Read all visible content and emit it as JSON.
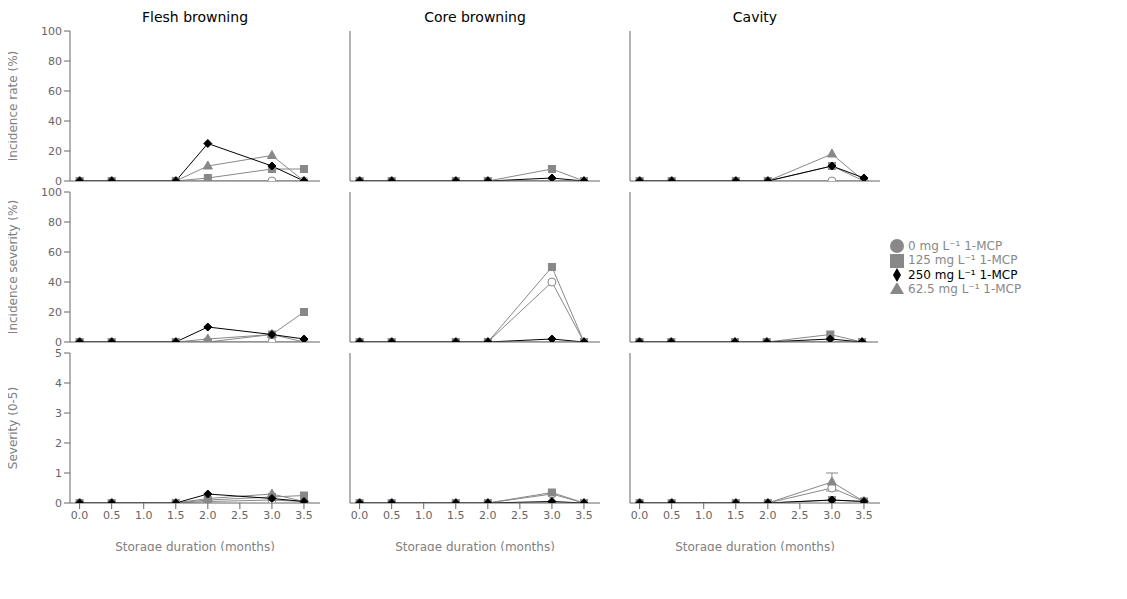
{
  "chart_data": [
    {
      "type": "line",
      "title": "Flesh browning",
      "ylabel": "Incidence rate (%)",
      "tick_labels": "y",
      "x": [
        0,
        0.5,
        1.5,
        2,
        3,
        3.5
      ],
      "xlim": [
        -0.15,
        3.75
      ],
      "xticks": [
        {
          "value": 0,
          "label": "0.0"
        },
        {
          "value": 0.5,
          "label": "0.5"
        },
        {
          "value": 1,
          "label": "1.0"
        },
        {
          "value": 1.5,
          "label": "1.5"
        },
        {
          "value": 2,
          "label": "2.0"
        },
        {
          "value": 2.5,
          "label": "2.5"
        },
        {
          "value": 3,
          "label": "3.0"
        },
        {
          "value": 3.5,
          "label": "3.5"
        }
      ],
      "ylim": [
        0,
        100
      ],
      "yticks": [
        0,
        20,
        40,
        60,
        80,
        100
      ],
      "series": [
        {
          "name": "0 mg L⁻¹ 1-MCP",
          "color": "#888888",
          "marker": "circle_open",
          "values": [
            0,
            0,
            0,
            0,
            0,
            0
          ]
        },
        {
          "name": "62.5 mg L⁻¹ 1-MCP",
          "color": "#888888",
          "marker": "triangle",
          "values": [
            0,
            0,
            0,
            10,
            17,
            0
          ]
        },
        {
          "name": "125 mg L⁻¹ 1-MCP",
          "color": "#888888",
          "marker": "square",
          "values": [
            0,
            0,
            0,
            2,
            8,
            8
          ]
        },
        {
          "name": "250 mg L⁻¹ 1-MCP",
          "color": "#000000",
          "marker": "diamond",
          "values": [
            0,
            0,
            0,
            25,
            10,
            0
          ]
        }
      ]
    },
    {
      "type": "line",
      "title": "Core browning",
      "tick_labels": false,
      "x": [
        0,
        0.5,
        1.5,
        2,
        3,
        3.5
      ],
      "xlim": [
        -0.15,
        3.75
      ],
      "xticks": [
        {
          "value": 0,
          "label": "0.0"
        },
        {
          "value": 0.5,
          "label": "0.5"
        },
        {
          "value": 1,
          "label": "1.0"
        },
        {
          "value": 1.5,
          "label": "1.5"
        },
        {
          "value": 2,
          "label": "2.0"
        },
        {
          "value": 2.5,
          "label": "2.5"
        },
        {
          "value": 3,
          "label": "3.0"
        },
        {
          "value": 3.5,
          "label": "3.5"
        }
      ],
      "ylim": [
        0,
        100
      ],
      "yticks": [
        0,
        20,
        40,
        60,
        80,
        100
      ],
      "series": [
        {
          "name": "0 mg L⁻¹ 1-MCP",
          "color": "#888888",
          "marker": "circle_open",
          "values": [
            0,
            0,
            0,
            0,
            0,
            0
          ]
        },
        {
          "name": "62.5 mg L⁻¹ 1-MCP",
          "color": "#888888",
          "marker": "triangle",
          "values": [
            0,
            0,
            0,
            0,
            0,
            0
          ]
        },
        {
          "name": "125 mg L⁻¹ 1-MCP",
          "color": "#888888",
          "marker": "square",
          "values": [
            0,
            0,
            0,
            0,
            8,
            0
          ]
        },
        {
          "name": "250 mg L⁻¹ 1-MCP",
          "color": "#000000",
          "marker": "diamond",
          "values": [
            0,
            0,
            0,
            0,
            2,
            0
          ]
        }
      ]
    },
    {
      "type": "line",
      "title": "Cavity",
      "tick_labels": false,
      "x": [
        0,
        0.5,
        1.5,
        2,
        3,
        3.5
      ],
      "xlim": [
        -0.15,
        3.75
      ],
      "xticks": [
        {
          "value": 0,
          "label": "0.0"
        },
        {
          "value": 0.5,
          "label": "0.5"
        },
        {
          "value": 1,
          "label": "1.0"
        },
        {
          "value": 1.5,
          "label": "1.5"
        },
        {
          "value": 2,
          "label": "2.0"
        },
        {
          "value": 2.5,
          "label": "2.5"
        },
        {
          "value": 3,
          "label": "3.0"
        },
        {
          "value": 3.5,
          "label": "3.5"
        }
      ],
      "ylim": [
        0,
        100
      ],
      "yticks": [
        0,
        20,
        40,
        60,
        80,
        100
      ],
      "series": [
        {
          "name": "0 mg L⁻¹ 1-MCP",
          "color": "#888888",
          "marker": "circle_open",
          "values": [
            0,
            0,
            0,
            0,
            0,
            0
          ]
        },
        {
          "name": "62.5 mg L⁻¹ 1-MCP",
          "color": "#888888",
          "marker": "triangle",
          "values": [
            0,
            0,
            0,
            0,
            18,
            0
          ]
        },
        {
          "name": "125 mg L⁻¹ 1-MCP",
          "color": "#888888",
          "marker": "square",
          "values": [
            0,
            0,
            0,
            0,
            10,
            0
          ]
        },
        {
          "name": "250 mg L⁻¹ 1-MCP",
          "color": "#000000",
          "marker": "diamond",
          "values": [
            0,
            0,
            0,
            0,
            10,
            2
          ]
        }
      ]
    },
    {
      "type": "line",
      "ylabel": "Incidence severity (%)",
      "tick_labels": "y",
      "x": [
        0,
        0.5,
        1.5,
        2,
        3,
        3.5
      ],
      "xlim": [
        -0.15,
        3.75
      ],
      "xticks": [
        {
          "value": 0,
          "label": "0.0"
        },
        {
          "value": 0.5,
          "label": "0.5"
        },
        {
          "value": 1,
          "label": "1.0"
        },
        {
          "value": 1.5,
          "label": "1.5"
        },
        {
          "value": 2,
          "label": "2.0"
        },
        {
          "value": 2.5,
          "label": "2.5"
        },
        {
          "value": 3,
          "label": "3.0"
        },
        {
          "value": 3.5,
          "label": "3.5"
        }
      ],
      "ylim": [
        0,
        100
      ],
      "yticks": [
        0,
        20,
        40,
        60,
        80,
        100
      ],
      "series": [
        {
          "name": "0 mg L⁻¹ 1-MCP",
          "color": "#888888",
          "marker": "circle_open",
          "values": [
            0,
            0,
            0,
            0,
            0,
            0
          ]
        },
        {
          "name": "62.5 mg L⁻¹ 1-MCP",
          "color": "#888888",
          "marker": "triangle",
          "values": [
            0,
            0,
            0,
            2,
            5,
            0
          ]
        },
        {
          "name": "125 mg L⁻¹ 1-MCP",
          "color": "#888888",
          "marker": "square",
          "values": [
            0,
            0,
            0,
            0,
            5,
            20
          ]
        },
        {
          "name": "250 mg L⁻¹ 1-MCP",
          "color": "#000000",
          "marker": "diamond",
          "values": [
            0,
            0,
            0,
            10,
            5,
            2
          ]
        }
      ]
    },
    {
      "type": "line",
      "tick_labels": false,
      "x": [
        0,
        0.5,
        1.5,
        2,
        3,
        3.5
      ],
      "xlim": [
        -0.15,
        3.75
      ],
      "xticks": [
        {
          "value": 0,
          "label": "0.0"
        },
        {
          "value": 0.5,
          "label": "0.5"
        },
        {
          "value": 1,
          "label": "1.0"
        },
        {
          "value": 1.5,
          "label": "1.5"
        },
        {
          "value": 2,
          "label": "2.0"
        },
        {
          "value": 2.5,
          "label": "2.5"
        },
        {
          "value": 3,
          "label": "3.0"
        },
        {
          "value": 3.5,
          "label": "3.5"
        }
      ],
      "ylim": [
        0,
        100
      ],
      "yticks": [
        0,
        20,
        40,
        60,
        80,
        100
      ],
      "series": [
        {
          "name": "0 mg L⁻¹ 1-MCP",
          "color": "#888888",
          "marker": "circle_open",
          "values": [
            0,
            0,
            0,
            0,
            40,
            0
          ]
        },
        {
          "name": "62.5 mg L⁻¹ 1-MCP",
          "color": "#888888",
          "marker": "triangle",
          "values": [
            0,
            0,
            0,
            0,
            0,
            0
          ]
        },
        {
          "name": "125 mg L⁻¹ 1-MCP",
          "color": "#888888",
          "marker": "square",
          "values": [
            0,
            0,
            0,
            0,
            50,
            0
          ]
        },
        {
          "name": "250 mg L⁻¹ 1-MCP",
          "color": "#000000",
          "marker": "diamond",
          "values": [
            0,
            0,
            0,
            0,
            2,
            0
          ]
        }
      ]
    },
    {
      "type": "line",
      "tick_labels": false,
      "legend": "right",
      "x": [
        0,
        0.5,
        1.5,
        2,
        3,
        3.5
      ],
      "xlim": [
        -0.15,
        3.75
      ],
      "xticks": [
        {
          "value": 0,
          "label": "0.0"
        },
        {
          "value": 0.5,
          "label": "0.5"
        },
        {
          "value": 1,
          "label": "1.0"
        },
        {
          "value": 1.5,
          "label": "1.5"
        },
        {
          "value": 2,
          "label": "2.0"
        },
        {
          "value": 2.5,
          "label": "2.5"
        },
        {
          "value": 3,
          "label": "3.0"
        },
        {
          "value": 3.5,
          "label": "3.5"
        }
      ],
      "ylim": [
        0,
        100
      ],
      "yticks": [
        0,
        20,
        40,
        60,
        80,
        100
      ],
      "series": [
        {
          "name": "0 mg L⁻¹ 1-MCP",
          "color": "#888888",
          "marker": "circle_open",
          "values": [
            0,
            0,
            0,
            0,
            0,
            0
          ]
        },
        {
          "name": "62.5 mg L⁻¹ 1-MCP",
          "color": "#888888",
          "marker": "triangle",
          "values": [
            0,
            0,
            0,
            0,
            0,
            0
          ]
        },
        {
          "name": "125 mg L⁻¹ 1-MCP",
          "color": "#888888",
          "marker": "square",
          "values": [
            0,
            0,
            0,
            0,
            5,
            0
          ]
        },
        {
          "name": "250 mg L⁻¹ 1-MCP",
          "color": "#000000",
          "marker": "diamond",
          "values": [
            0,
            0,
            0,
            0,
            2,
            0
          ]
        }
      ]
    },
    {
      "type": "line",
      "ylabel": "Severity (0-5)",
      "xlabel": "Storage duration (months)",
      "x": [
        0,
        0.5,
        1.5,
        2,
        3,
        3.5
      ],
      "xlim": [
        -0.15,
        3.75
      ],
      "xticks": [
        {
          "value": 0,
          "label": "0.0"
        },
        {
          "value": 0.5,
          "label": "0.5"
        },
        {
          "value": 1,
          "label": "1.0"
        },
        {
          "value": 1.5,
          "label": "1.5"
        },
        {
          "value": 2,
          "label": "2.0"
        },
        {
          "value": 2.5,
          "label": "2.5"
        },
        {
          "value": 3,
          "label": "3.0"
        },
        {
          "value": 3.5,
          "label": "3.5"
        }
      ],
      "ylim": [
        0,
        5
      ],
      "yticks": [
        0,
        1,
        2,
        3,
        4,
        5
      ],
      "series": [
        {
          "name": "0 mg L⁻¹ 1-MCP",
          "color": "#888888",
          "marker": "circle_open",
          "values": [
            0,
            0,
            0,
            0.05,
            0.1,
            0.05
          ]
        },
        {
          "name": "62.5 mg L⁻¹ 1-MCP",
          "color": "#888888",
          "marker": "triangle",
          "values": [
            0,
            0,
            0,
            0.15,
            0.3,
            0.05
          ]
        },
        {
          "name": "125 mg L⁻¹ 1-MCP",
          "color": "#888888",
          "marker": "square",
          "values": [
            0,
            0,
            0,
            0.1,
            0.2,
            0.25
          ]
        },
        {
          "name": "250 mg L⁻¹ 1-MCP",
          "color": "#000000",
          "marker": "diamond",
          "values": [
            0,
            0,
            0,
            0.3,
            0.15,
            0.05
          ]
        }
      ]
    },
    {
      "type": "line",
      "xlabel": "Storage duration (months)",
      "tick_labels": "x",
      "x": [
        0,
        0.5,
        1.5,
        2,
        3,
        3.5
      ],
      "xlim": [
        -0.15,
        3.75
      ],
      "xticks": [
        {
          "value": 0,
          "label": "0.0"
        },
        {
          "value": 0.5,
          "label": "0.5"
        },
        {
          "value": 1,
          "label": "1.0"
        },
        {
          "value": 1.5,
          "label": "1.5"
        },
        {
          "value": 2,
          "label": "2.0"
        },
        {
          "value": 2.5,
          "label": "2.5"
        },
        {
          "value": 3,
          "label": "3.0"
        },
        {
          "value": 3.5,
          "label": "3.5"
        }
      ],
      "ylim": [
        0,
        5
      ],
      "yticks": [
        0,
        1,
        2,
        3,
        4,
        5
      ],
      "series": [
        {
          "name": "0 mg L⁻¹ 1-MCP",
          "color": "#888888",
          "marker": "circle_open",
          "values": [
            0,
            0,
            0,
            0,
            0.3,
            0
          ]
        },
        {
          "name": "62.5 mg L⁻¹ 1-MCP",
          "color": "#888888",
          "marker": "triangle",
          "values": [
            0,
            0,
            0,
            0,
            0,
            0
          ]
        },
        {
          "name": "125 mg L⁻¹ 1-MCP",
          "color": "#888888",
          "marker": "square",
          "values": [
            0,
            0,
            0,
            0,
            0.35,
            0
          ]
        },
        {
          "name": "250 mg L⁻¹ 1-MCP",
          "color": "#000000",
          "marker": "diamond",
          "values": [
            0,
            0,
            0,
            0,
            0.05,
            0
          ]
        }
      ]
    },
    {
      "type": "line",
      "xlabel": "Storage duration (months)",
      "tick_labels": "x",
      "x": [
        0,
        0.5,
        1.5,
        2,
        3,
        3.5
      ],
      "xlim": [
        -0.15,
        3.75
      ],
      "xticks": [
        {
          "value": 0,
          "label": "0.0"
        },
        {
          "value": 0.5,
          "label": "0.5"
        },
        {
          "value": 1,
          "label": "1.0"
        },
        {
          "value": 1.5,
          "label": "1.5"
        },
        {
          "value": 2,
          "label": "2.0"
        },
        {
          "value": 2.5,
          "label": "2.5"
        },
        {
          "value": 3,
          "label": "3.0"
        },
        {
          "value": 3.5,
          "label": "3.5"
        }
      ],
      "ylim": [
        0,
        5
      ],
      "yticks": [
        0,
        1,
        2,
        3,
        4,
        5
      ],
      "series": [
        {
          "name": "0 mg L⁻¹ 1-MCP",
          "color": "#888888",
          "marker": "circle_open",
          "values": [
            0,
            0,
            0,
            0,
            0.5,
            0.05
          ]
        },
        {
          "name": "62.5 mg L⁻¹ 1-MCP",
          "color": "#888888",
          "marker": "triangle",
          "values": [
            0,
            0,
            0,
            0,
            0.7,
            0.05
          ],
          "errors": [
            null,
            null,
            null,
            null,
            0.3,
            null
          ]
        },
        {
          "name": "125 mg L⁻¹ 1-MCP",
          "color": "#888888",
          "marker": "square",
          "values": [
            0,
            0,
            0,
            0,
            0.1,
            0.05
          ]
        },
        {
          "name": "250 mg L⁻¹ 1-MCP",
          "color": "#000000",
          "marker": "diamond",
          "values": [
            0,
            0,
            0,
            0,
            0.1,
            0.05
          ]
        }
      ]
    }
  ]
}
